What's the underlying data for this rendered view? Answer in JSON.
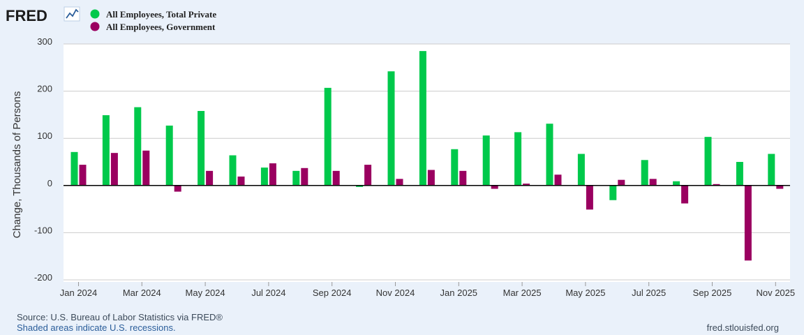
{
  "brand": {
    "logo_text": "FRED"
  },
  "chart_data": {
    "type": "bar",
    "title": "",
    "xlabel": "",
    "ylabel": "Change, Thousands of Persons",
    "ylim": [
      -200,
      300
    ],
    "yticks": [
      300,
      200,
      100,
      0,
      -100,
      -200
    ],
    "grid": true,
    "legend_position": "top-left",
    "categories": [
      "Jan 2024",
      "Feb 2024",
      "Mar 2024",
      "Apr 2024",
      "May 2024",
      "Jun 2024",
      "Jul 2024",
      "Aug 2024",
      "Sep 2024",
      "Oct 2024",
      "Nov 2024",
      "Dec 2024",
      "Jan 2025",
      "Feb 2025",
      "Mar 2025",
      "Apr 2025",
      "May 2025",
      "Jun 2025",
      "Jul 2025",
      "Aug 2025",
      "Sep 2025",
      "Oct 2025",
      "Nov 2025"
    ],
    "x_tick_labels": [
      {
        "index": 0,
        "label": "Jan 2024"
      },
      {
        "index": 2,
        "label": "Mar 2024"
      },
      {
        "index": 4,
        "label": "May 2024"
      },
      {
        "index": 6,
        "label": "Jul 2024"
      },
      {
        "index": 8,
        "label": "Sep 2024"
      },
      {
        "index": 10,
        "label": "Nov 2024"
      },
      {
        "index": 12,
        "label": "Jan 2025"
      },
      {
        "index": 14,
        "label": "Mar 2025"
      },
      {
        "index": 16,
        "label": "May 2025"
      },
      {
        "index": 18,
        "label": "Jul 2025"
      },
      {
        "index": 20,
        "label": "Sep 2025"
      },
      {
        "index": 22,
        "label": "Nov 2025"
      }
    ],
    "series": [
      {
        "name": "All Employees, Total Private",
        "color": "#00c94b",
        "values": [
          71,
          149,
          166,
          127,
          158,
          64,
          38,
          31,
          207,
          -3,
          242,
          285,
          77,
          106,
          113,
          131,
          67,
          -31,
          54,
          9,
          103,
          50,
          67
        ]
      },
      {
        "name": "All Employees, Government",
        "color": "#9a0060",
        "values": [
          44,
          69,
          74,
          -13,
          31,
          19,
          47,
          37,
          31,
          44,
          14,
          33,
          31,
          -7,
          4,
          23,
          -51,
          12,
          14,
          -38,
          3,
          -159,
          -7
        ]
      }
    ]
  },
  "footer": {
    "source": "Source: U.S. Bureau of Labor Statistics via FRED®",
    "recession_note": "Shaded areas indicate U.S. recessions.",
    "site": "fred.stlouisfed.org"
  }
}
